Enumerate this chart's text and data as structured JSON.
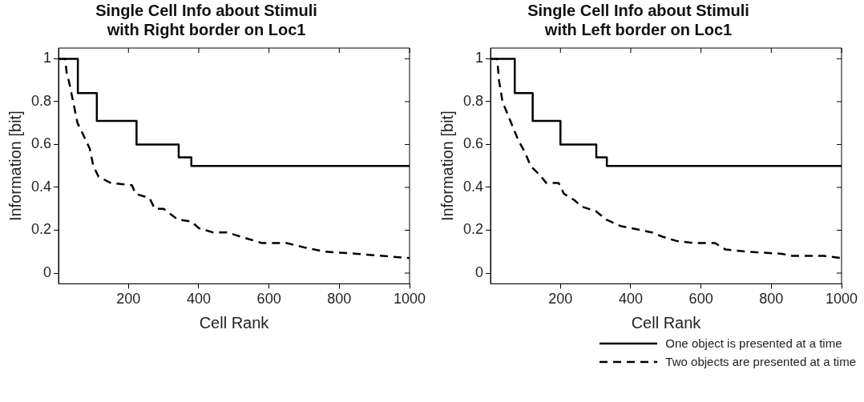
{
  "chart_data": [
    {
      "type": "line",
      "title": "Single Cell Info about Stimuli with Right border on Loc1",
      "xlabel": "Cell Rank",
      "ylabel": "Information [bit]",
      "xlim": [
        1,
        1000
      ],
      "xticks": [
        200,
        400,
        600,
        800,
        1000
      ],
      "ylim": [
        -0.05,
        1.05
      ],
      "yticks": [
        0,
        0.2,
        0.4,
        0.6,
        0.8,
        1
      ],
      "grid": false,
      "legend": false,
      "marker": "none",
      "series": [
        {
          "type": "step",
          "color": "#000000",
          "line_style": "solid",
          "x": [
            1,
            56,
            110,
            223,
            343,
            379,
            1000
          ],
          "values": [
            1,
            0.84,
            0.71,
            0.6,
            0.54,
            0.5,
            0.5
          ]
        },
        {
          "type": "line",
          "color": "#000000",
          "line_style": "dashed",
          "x": [
            1,
            20,
            25,
            30,
            40,
            55,
            70,
            90,
            100,
            115,
            150,
            210,
            220,
            260,
            275,
            300,
            340,
            380,
            400,
            440,
            480,
            500,
            540,
            580,
            650,
            700,
            760,
            850,
            1000
          ],
          "values": [
            1,
            1,
            0.92,
            0.9,
            0.82,
            0.7,
            0.65,
            0.58,
            0.5,
            0.45,
            0.42,
            0.41,
            0.37,
            0.35,
            0.3,
            0.3,
            0.25,
            0.24,
            0.21,
            0.19,
            0.19,
            0.18,
            0.16,
            0.14,
            0.14,
            0.12,
            0.1,
            0.09,
            0.07
          ]
        }
      ]
    },
    {
      "type": "line",
      "title": "Single Cell Info about Stimuli with Left border on Loc1",
      "xlabel": "Cell Rank",
      "ylabel": "Information [bit]",
      "xlim": [
        1,
        1000
      ],
      "xticks": [
        200,
        400,
        600,
        800,
        1000
      ],
      "ylim": [
        -0.05,
        1.05
      ],
      "yticks": [
        0,
        0.2,
        0.4,
        0.6,
        0.8,
        1
      ],
      "grid": false,
      "legend": "bottom right",
      "marker": "none",
      "series": [
        {
          "type": "step",
          "name": "One object is presented at a time",
          "color": "#000000",
          "line_style": "solid",
          "x": [
            1,
            70,
            121,
            200,
            302,
            332,
            1000
          ],
          "values": [
            1,
            0.84,
            0.71,
            0.6,
            0.54,
            0.5,
            0.5
          ]
        },
        {
          "type": "line",
          "name": "Two objects are presented at a time",
          "color": "#000000",
          "line_style": "dashed",
          "x": [
            1,
            20,
            25,
            35,
            60,
            80,
            100,
            115,
            140,
            160,
            195,
            210,
            240,
            260,
            300,
            330,
            370,
            400,
            460,
            490,
            530,
            580,
            640,
            670,
            730,
            830,
            860,
            950,
            1000
          ],
          "values": [
            1,
            1,
            0.9,
            0.8,
            0.7,
            0.62,
            0.56,
            0.5,
            0.46,
            0.42,
            0.42,
            0.37,
            0.34,
            0.31,
            0.29,
            0.25,
            0.22,
            0.21,
            0.19,
            0.17,
            0.15,
            0.14,
            0.14,
            0.11,
            0.1,
            0.09,
            0.08,
            0.08,
            0.07
          ]
        }
      ]
    }
  ]
}
